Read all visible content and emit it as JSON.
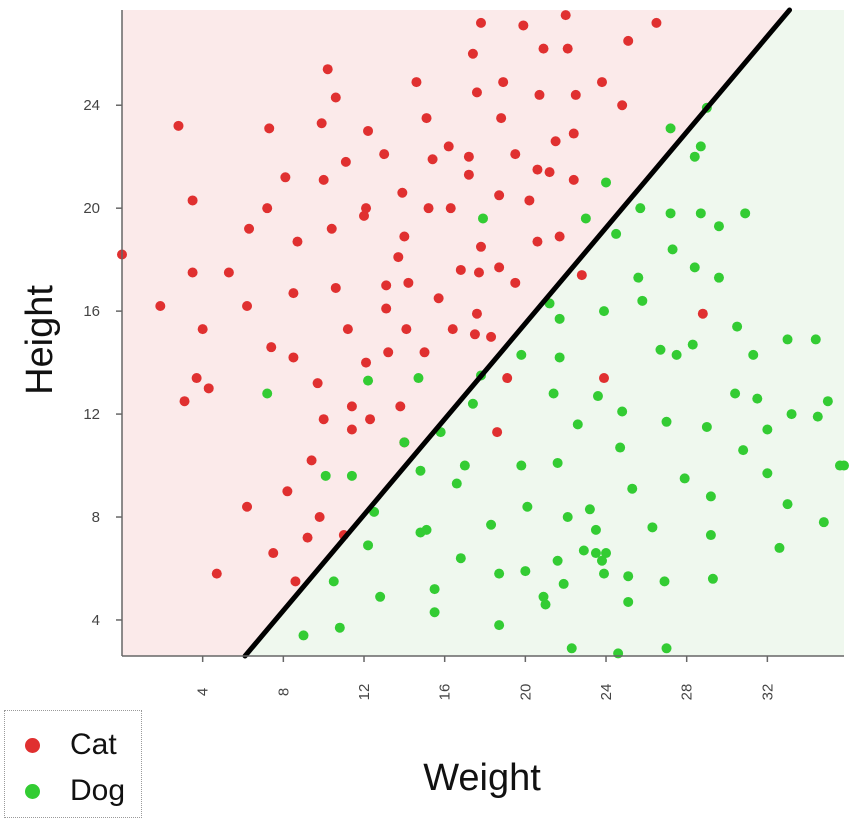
{
  "chart_data": {
    "type": "scatter",
    "title": "",
    "xlabel": "Weight",
    "ylabel": "Height",
    "xlim": [
      0,
      35.8
    ],
    "ylim": [
      2.6,
      27.7
    ],
    "x_ticks": [
      4,
      8,
      12,
      16,
      20,
      24,
      28,
      32
    ],
    "y_ticks": [
      4,
      8,
      12,
      16,
      20,
      24
    ],
    "grid": false,
    "legend_position": "bottom-left",
    "background_regions": [
      {
        "side": "above-line",
        "color": "#fbeaea"
      },
      {
        "side": "below-line",
        "color": "#eff8ee"
      }
    ],
    "decision_boundary": {
      "x": [
        6.1,
        33.1
      ],
      "y": [
        2.6,
        27.7
      ],
      "color": "#000000"
    },
    "series": [
      {
        "name": "Cat",
        "color": "#e03030",
        "points": [
          [
            0.0,
            18.2
          ],
          [
            1.9,
            16.2
          ],
          [
            2.8,
            23.2
          ],
          [
            3.1,
            12.5
          ],
          [
            3.5,
            20.3
          ],
          [
            3.5,
            17.5
          ],
          [
            3.7,
            13.4
          ],
          [
            4.0,
            15.3
          ],
          [
            4.3,
            13.0
          ],
          [
            4.7,
            5.8
          ],
          [
            5.3,
            17.5
          ],
          [
            6.3,
            19.2
          ],
          [
            6.2,
            16.2
          ],
          [
            6.2,
            8.4
          ],
          [
            7.2,
            20.0
          ],
          [
            7.3,
            23.1
          ],
          [
            7.4,
            14.6
          ],
          [
            7.5,
            6.6
          ],
          [
            8.1,
            21.2
          ],
          [
            8.2,
            9.0
          ],
          [
            8.5,
            16.7
          ],
          [
            8.5,
            14.2
          ],
          [
            8.6,
            5.5
          ],
          [
            8.7,
            18.7
          ],
          [
            9.2,
            7.2
          ],
          [
            9.4,
            10.2
          ],
          [
            9.7,
            13.2
          ],
          [
            9.8,
            8.0
          ],
          [
            9.9,
            23.3
          ],
          [
            10.0,
            21.1
          ],
          [
            10.0,
            11.8
          ],
          [
            10.2,
            25.4
          ],
          [
            10.4,
            19.2
          ],
          [
            10.6,
            24.3
          ],
          [
            10.6,
            16.9
          ],
          [
            11.0,
            7.3
          ],
          [
            11.1,
            21.8
          ],
          [
            11.2,
            15.3
          ],
          [
            11.4,
            11.4
          ],
          [
            11.4,
            12.3
          ],
          [
            12.0,
            19.7
          ],
          [
            12.1,
            20.0
          ],
          [
            12.1,
            14.0
          ],
          [
            12.2,
            23.0
          ],
          [
            12.3,
            11.8
          ],
          [
            13.0,
            22.1
          ],
          [
            13.1,
            16.1
          ],
          [
            13.1,
            17.0
          ],
          [
            13.2,
            14.4
          ],
          [
            13.7,
            18.1
          ],
          [
            13.8,
            12.3
          ],
          [
            13.9,
            20.6
          ],
          [
            14.0,
            18.9
          ],
          [
            14.1,
            15.3
          ],
          [
            14.2,
            17.1
          ],
          [
            14.0,
            10.9
          ],
          [
            14.6,
            24.9
          ],
          [
            15.0,
            14.4
          ],
          [
            15.1,
            23.5
          ],
          [
            15.2,
            20.0
          ],
          [
            15.4,
            21.9
          ],
          [
            15.7,
            16.5
          ],
          [
            16.2,
            22.4
          ],
          [
            16.3,
            20.0
          ],
          [
            16.4,
            15.3
          ],
          [
            16.8,
            17.6
          ],
          [
            17.2,
            22.0
          ],
          [
            17.2,
            21.3
          ],
          [
            17.4,
            26.0
          ],
          [
            17.5,
            15.1
          ],
          [
            17.6,
            15.9
          ],
          [
            17.6,
            24.5
          ],
          [
            17.8,
            27.2
          ],
          [
            17.7,
            17.5
          ],
          [
            17.8,
            18.5
          ],
          [
            18.3,
            15.0
          ],
          [
            18.6,
            11.3
          ],
          [
            18.7,
            20.5
          ],
          [
            18.7,
            17.7
          ],
          [
            18.8,
            23.5
          ],
          [
            18.9,
            24.9
          ],
          [
            19.1,
            13.4
          ],
          [
            19.5,
            22.1
          ],
          [
            19.5,
            17.1
          ],
          [
            19.9,
            27.1
          ],
          [
            20.2,
            20.3
          ],
          [
            20.6,
            18.7
          ],
          [
            20.6,
            21.5
          ],
          [
            20.7,
            24.4
          ],
          [
            20.9,
            26.2
          ],
          [
            21.2,
            21.4
          ],
          [
            21.5,
            22.6
          ],
          [
            21.7,
            18.9
          ],
          [
            22.0,
            27.5
          ],
          [
            22.1,
            26.2
          ],
          [
            22.4,
            21.1
          ],
          [
            22.4,
            22.9
          ],
          [
            22.5,
            24.4
          ],
          [
            22.8,
            17.4
          ],
          [
            23.8,
            24.9
          ],
          [
            23.9,
            13.4
          ],
          [
            24.8,
            24.0
          ],
          [
            25.1,
            26.5
          ],
          [
            26.5,
            27.2
          ],
          [
            28.8,
            15.9
          ]
        ]
      },
      {
        "name": "Dog",
        "color": "#33cc33",
        "points": [
          [
            7.2,
            12.8
          ],
          [
            9.0,
            3.4
          ],
          [
            10.1,
            9.6
          ],
          [
            10.5,
            5.5
          ],
          [
            10.8,
            3.7
          ],
          [
            11.4,
            9.6
          ],
          [
            12.2,
            13.3
          ],
          [
            12.2,
            6.9
          ],
          [
            12.5,
            8.2
          ],
          [
            12.8,
            4.9
          ],
          [
            14.0,
            10.9
          ],
          [
            14.7,
            13.4
          ],
          [
            14.8,
            7.4
          ],
          [
            14.8,
            9.8
          ],
          [
            15.1,
            7.5
          ],
          [
            15.5,
            5.2
          ],
          [
            15.5,
            4.3
          ],
          [
            15.8,
            11.3
          ],
          [
            16.6,
            9.3
          ],
          [
            16.8,
            6.4
          ],
          [
            17.0,
            10.0
          ],
          [
            17.4,
            12.4
          ],
          [
            17.8,
            13.5
          ],
          [
            17.9,
            19.6
          ],
          [
            18.3,
            7.7
          ],
          [
            18.7,
            5.8
          ],
          [
            18.7,
            3.8
          ],
          [
            19.8,
            14.3
          ],
          [
            19.8,
            10.0
          ],
          [
            20.0,
            5.9
          ],
          [
            20.1,
            8.4
          ],
          [
            20.9,
            4.9
          ],
          [
            21.0,
            4.6
          ],
          [
            21.2,
            16.3
          ],
          [
            21.4,
            12.8
          ],
          [
            21.6,
            6.3
          ],
          [
            21.6,
            10.1
          ],
          [
            21.7,
            15.7
          ],
          [
            21.7,
            14.2
          ],
          [
            21.9,
            5.4
          ],
          [
            22.1,
            8.0
          ],
          [
            22.3,
            2.9
          ],
          [
            22.6,
            11.6
          ],
          [
            22.9,
            6.7
          ],
          [
            23.0,
            19.6
          ],
          [
            23.2,
            8.3
          ],
          [
            23.5,
            7.5
          ],
          [
            23.6,
            12.7
          ],
          [
            23.5,
            6.6
          ],
          [
            23.8,
            6.3
          ],
          [
            23.9,
            5.8
          ],
          [
            23.9,
            16.0
          ],
          [
            24.0,
            6.6
          ],
          [
            24.0,
            21.0
          ],
          [
            24.5,
            19.0
          ],
          [
            24.6,
            2.7
          ],
          [
            24.7,
            10.7
          ],
          [
            24.8,
            12.1
          ],
          [
            25.1,
            5.7
          ],
          [
            25.1,
            4.7
          ],
          [
            25.3,
            9.1
          ],
          [
            25.6,
            17.3
          ],
          [
            25.7,
            20.0
          ],
          [
            25.8,
            16.4
          ],
          [
            26.3,
            7.6
          ],
          [
            26.7,
            14.5
          ],
          [
            26.9,
            5.5
          ],
          [
            27.0,
            11.7
          ],
          [
            27.0,
            2.9
          ],
          [
            27.2,
            23.1
          ],
          [
            27.3,
            18.4
          ],
          [
            27.2,
            19.8
          ],
          [
            27.5,
            14.3
          ],
          [
            27.9,
            9.5
          ],
          [
            28.3,
            14.7
          ],
          [
            28.4,
            17.7
          ],
          [
            28.4,
            22.0
          ],
          [
            28.7,
            19.8
          ],
          [
            28.7,
            22.4
          ],
          [
            29.0,
            11.5
          ],
          [
            29.0,
            23.9
          ],
          [
            29.2,
            8.8
          ],
          [
            29.2,
            7.3
          ],
          [
            29.3,
            5.6
          ],
          [
            29.6,
            17.3
          ],
          [
            29.6,
            19.3
          ],
          [
            30.4,
            12.8
          ],
          [
            30.5,
            15.4
          ],
          [
            30.9,
            19.8
          ],
          [
            30.8,
            10.6
          ],
          [
            31.3,
            14.3
          ],
          [
            31.5,
            12.6
          ],
          [
            32.0,
            11.4
          ],
          [
            32.0,
            9.7
          ],
          [
            32.6,
            6.8
          ],
          [
            33.0,
            8.5
          ],
          [
            33.0,
            14.9
          ],
          [
            33.2,
            12.0
          ],
          [
            34.4,
            14.9
          ],
          [
            34.5,
            11.9
          ],
          [
            34.8,
            7.8
          ],
          [
            35.0,
            12.5
          ],
          [
            35.6,
            10.0
          ],
          [
            35.8,
            10.0
          ]
        ]
      }
    ]
  }
}
